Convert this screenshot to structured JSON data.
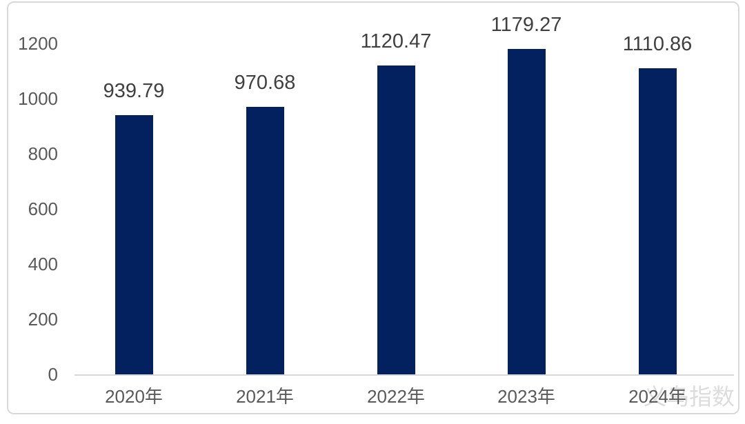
{
  "watermark": {
    "text": "义乌指数",
    "color": "#dcdcdc"
  },
  "chart_data": {
    "type": "bar",
    "title": "",
    "xlabel": "",
    "ylabel": "",
    "categories": [
      "2020年",
      "2021年",
      "2022年",
      "2023年",
      "2024年"
    ],
    "values": [
      939.79,
      970.68,
      1120.47,
      1179.27,
      1110.86
    ],
    "value_labels": [
      "939.79",
      "970.68",
      "1120.47",
      "1179.27",
      "1110.86"
    ],
    "ylim": [
      0,
      1200
    ],
    "yticks": [
      0,
      200,
      400,
      600,
      800,
      1000,
      1200
    ],
    "grid": false,
    "legend": "none",
    "colors": {
      "bar": "#02215E",
      "axis_line": "#D9D9D9",
      "tick_label": "#595959",
      "value_label": "#404040"
    }
  }
}
